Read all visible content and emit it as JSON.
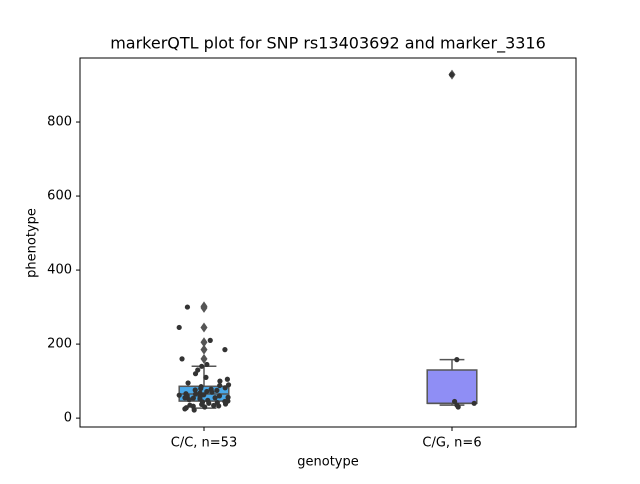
{
  "chart_data": {
    "type": "box",
    "title": "markerQTL plot for SNP rs13403692 and marker_3316",
    "x_label": "genotype",
    "y_label": "phenotype",
    "categories": [
      "C/C, n=53",
      "C/G, n=6"
    ],
    "ylim": [
      -24,
      973
    ],
    "yticks": [
      0,
      200,
      400,
      600,
      800
    ],
    "boxes": [
      {
        "color": "#4aa8e8",
        "whislo": 27,
        "q1": 46,
        "median": 65,
        "q3": 86,
        "whishi": 140,
        "fliers": [
          302,
          298,
          245,
          205,
          185,
          160
        ],
        "points": [
          245,
          185,
          160,
          145,
          130,
          140,
          210,
          300,
          120,
          110,
          105,
          100,
          95,
          90,
          88,
          85,
          82,
          80,
          78,
          76,
          75,
          72,
          70,
          68,
          66,
          65,
          63,
          62,
          60,
          58,
          56,
          55,
          54,
          52,
          50,
          48,
          46,
          45,
          44,
          42,
          40,
          38,
          37,
          35,
          34,
          33,
          32,
          30,
          28,
          25,
          22,
          55,
          60
        ]
      },
      {
        "color": "#8f8ef5",
        "whislo": 35,
        "q1": 40,
        "median": 40,
        "q3": 130,
        "whishi": 158,
        "fliers": [
          928
        ],
        "points": [
          30,
          35,
          40,
          45,
          158,
          928
        ]
      }
    ]
  }
}
